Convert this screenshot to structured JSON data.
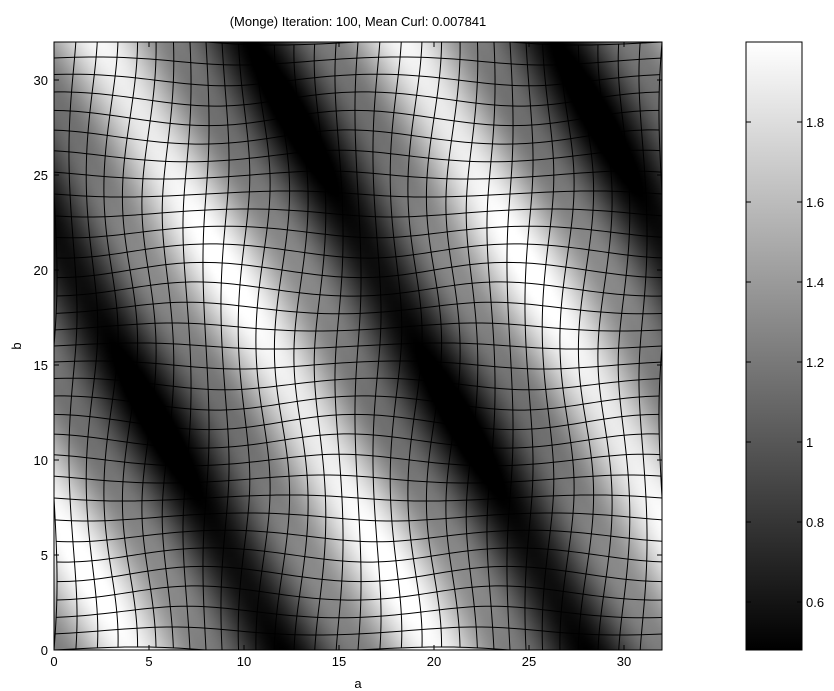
{
  "chart_data": {
    "type": "heatmap",
    "title": "(Monge) Iteration: 100,  Mean Curl: 0.007841",
    "xlabel": "a",
    "ylabel": "b",
    "xlim": [
      0,
      32
    ],
    "ylim": [
      0,
      32
    ],
    "x_ticks": [
      0,
      5,
      10,
      15,
      20,
      25,
      30
    ],
    "y_ticks": [
      0,
      5,
      10,
      15,
      20,
      25,
      30
    ],
    "grid_lines": 33,
    "colormap": "gray",
    "colorbar": {
      "range": [
        0.48,
        2.0
      ],
      "ticks": [
        0.6,
        0.8,
        1,
        1.2,
        1.4,
        1.6,
        1.8
      ],
      "tick_labels": [
        "0.6",
        "0.8",
        "1",
        "1.2",
        "1.4",
        "1.6",
        "1.8"
      ]
    },
    "colors": {
      "background": "#ffffff",
      "grid": "#000000",
      "low": "#000000",
      "high": "#ffffff"
    }
  }
}
